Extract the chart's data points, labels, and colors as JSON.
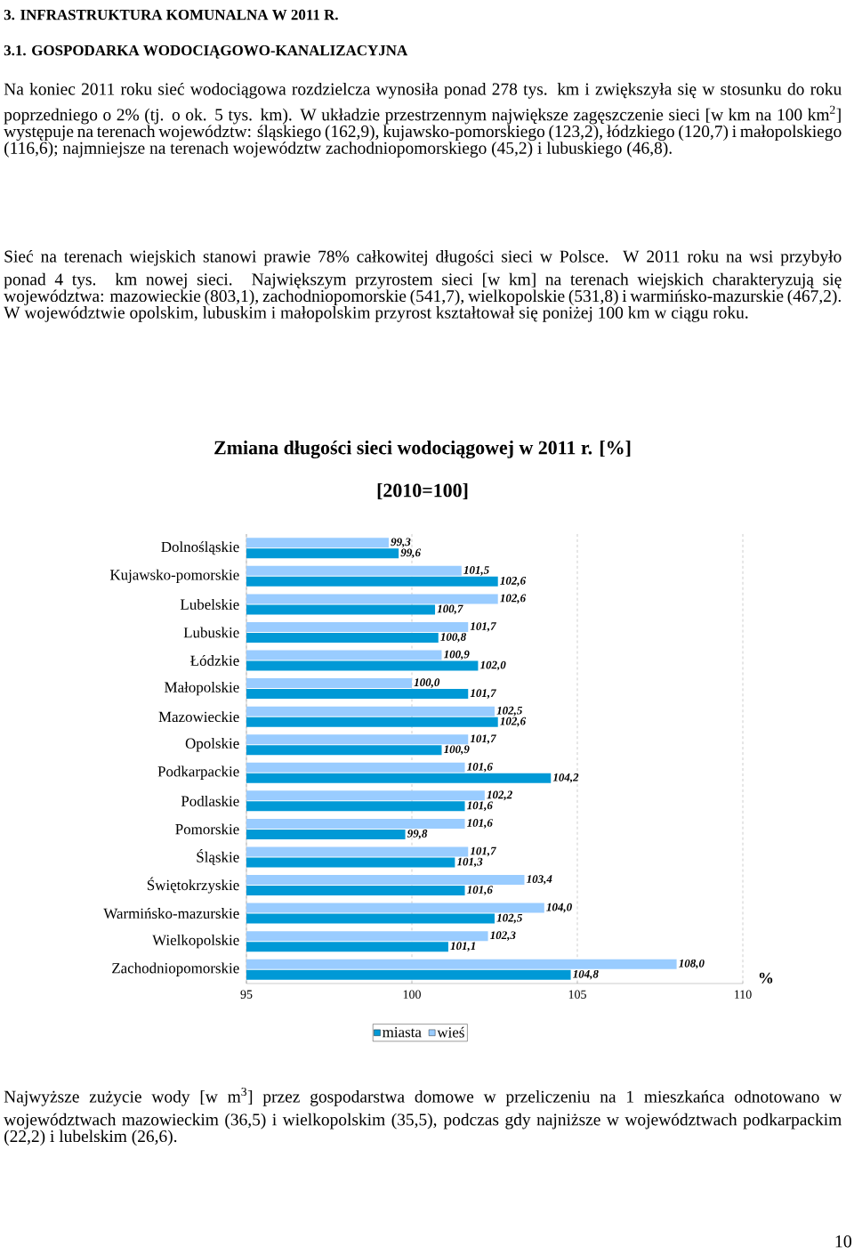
{
  "chart_data": {
    "type": "bar",
    "orientation": "horizontal",
    "title": "Zmiana długości sieci wodociągowej w 2011 r. [%]",
    "subtitle": "[2010=100]",
    "xlabel": "%",
    "categories": [
      "Dolnośląskie",
      "Kujawsko-pomorskie",
      "Lubelskie",
      "Lubuskie",
      "Łódzkie",
      "Małopolskie",
      "Mazowieckie",
      "Opolskie",
      "Podkarpackie",
      "Podlaskie",
      "Pomorskie",
      "Śląskie",
      "Świętokrzyskie",
      "Warmińsko-mazurskie",
      "Wielkopolskie",
      "Zachodniopomorskie"
    ],
    "series": [
      {
        "name": "miasta",
        "color": "#0099d6",
        "values": [
          99.6,
          102.6,
          100.7,
          100.8,
          102.0,
          101.7,
          102.6,
          100.9,
          104.2,
          101.6,
          99.8,
          101.3,
          101.6,
          102.5,
          101.1,
          104.8
        ],
        "value_labels": [
          "99,6",
          "102,6",
          "100,7",
          "100,8",
          "102,0",
          "101,7",
          "102,6",
          "100,9",
          "104,2",
          "101,6",
          "99,8",
          "101,3",
          "101,6",
          "102,5",
          "101,1",
          "104,8"
        ]
      },
      {
        "name": "wieś",
        "color": "#99ccff",
        "values": [
          99.3,
          101.5,
          102.6,
          101.7,
          100.9,
          100.0,
          102.5,
          101.7,
          101.6,
          102.2,
          101.6,
          101.7,
          103.4,
          104.0,
          102.3,
          108.0
        ],
        "value_labels": [
          "99,3",
          "101,5",
          "102,6",
          "101,7",
          "100,9",
          "100,0",
          "102,5",
          "101,7",
          "101,6",
          "102,2",
          "101,6",
          "101,7",
          "103,4",
          "104,0",
          "102,3",
          "108,0"
        ]
      }
    ],
    "xlim": [
      95,
      110
    ],
    "xticks": [
      95,
      100,
      105,
      110
    ],
    "grid": "x",
    "legend": "bottom",
    "annotations": [
      "3. INFRASTRUKTURA KOMUNALNA W 2011 R.",
      "3.1. GOSPODARKA WODOCIĄGOWO-KANALIZACYJNA",
      "Na koniec 2011 roku sieć wodociągowa rozdzielcza wynosiła ponad 278 tys. km i zwiększyła się w stosunku do roku poprzedniego o 2% (tj. o ok. 5 tys. km). W układzie przestrzennym największe zagęszczenie sieci [w km na 100 km$^{2}$] występuje na terenach województw: śląskiego (162,9), kujawsko-pomorskiego (123,2), łódzkiego (120,7) i małopolskiego (116,6); najmniejsze na terenach województw zachodniopomorskiego (45,2) i lubuskiego (46,8).",
      "Sieć na terenach wiejskich stanowi prawie 78% całkowitej długości sieci w Polsce. W 2011 roku na wsi przybyło ponad 4 tys. km nowej sieci. Największym przyrostem sieci [w km] na terenach wiejskich charakteryzują się województwa: mazowieckie (803,1), zachodniopomorskie (541,7), wielkopolskie (531,8) i warmińsko-mazurskie (467,2). W województwie opolskim, lubuskim i małopolskim przyrost kształtował się poniżej 100 km w ciągu roku.",
      "Najwyższe zużycie wody [w m$^{3}$] przez gospodarstwa domowe w przeliczeniu na 1 mieszkańca odnotowano w województwach mazowieckim (36,5) i wielkopolskim (35,5), podczas gdy najniższe w województwach podkarpackim (22,2) i lubelskim (26,6).",
      "10"
    ]
  }
}
